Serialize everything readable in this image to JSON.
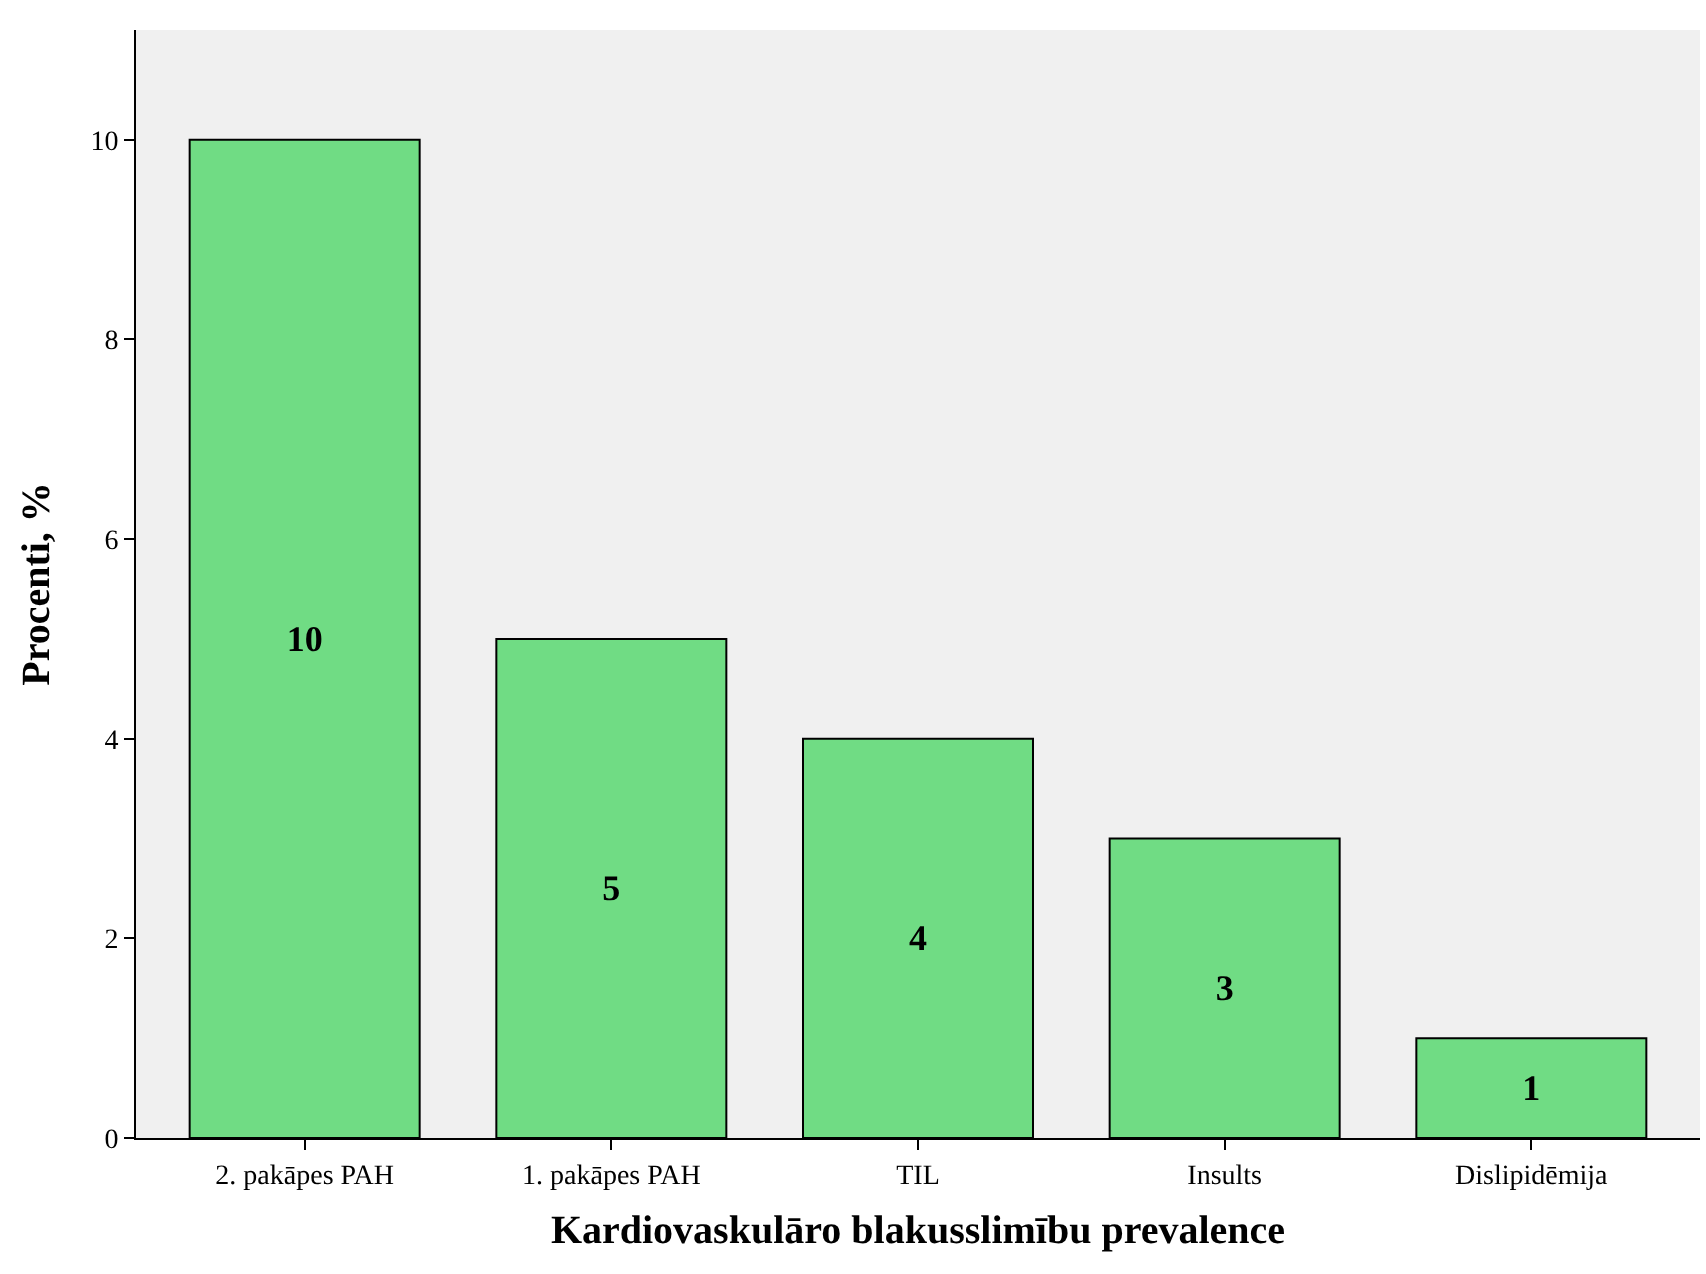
{
  "chart_data": {
    "type": "bar",
    "xlabel": "Kardiovaskulāro blakusslimību prevalence",
    "ylabel": "Procenti, %",
    "categories": [
      "2. pakāpes PAH",
      "1. pakāpes PAH",
      "TIL",
      "Insults",
      "Dislipidēmija"
    ],
    "values": [
      10,
      5,
      4,
      3,
      1
    ],
    "color": "#70dc84",
    "ylim": [
      0,
      11.1
    ],
    "yticks": [
      0,
      2,
      4,
      6,
      8,
      10
    ],
    "grid": false,
    "data_labels": true
  }
}
